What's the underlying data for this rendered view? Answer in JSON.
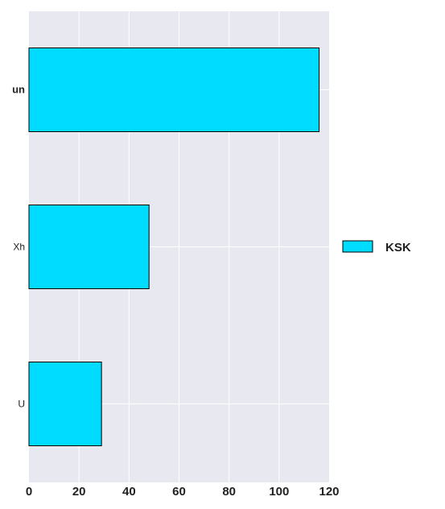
{
  "chart_data": {
    "type": "bar",
    "orientation": "horizontal",
    "categories": [
      "un",
      "Xh",
      "U"
    ],
    "series": [
      {
        "name": "KSK",
        "values": [
          116,
          48,
          29
        ],
        "color": "#00dcff"
      }
    ],
    "xlim": [
      0,
      120
    ],
    "xticks": [
      "0",
      "20",
      "40",
      "60",
      "80",
      "100",
      "120"
    ],
    "grid": true,
    "plot_background": "#e8e8f0",
    "bar_edge_color": "#000000",
    "legend": {
      "placement": "right",
      "entries": [
        "KSK"
      ]
    }
  }
}
